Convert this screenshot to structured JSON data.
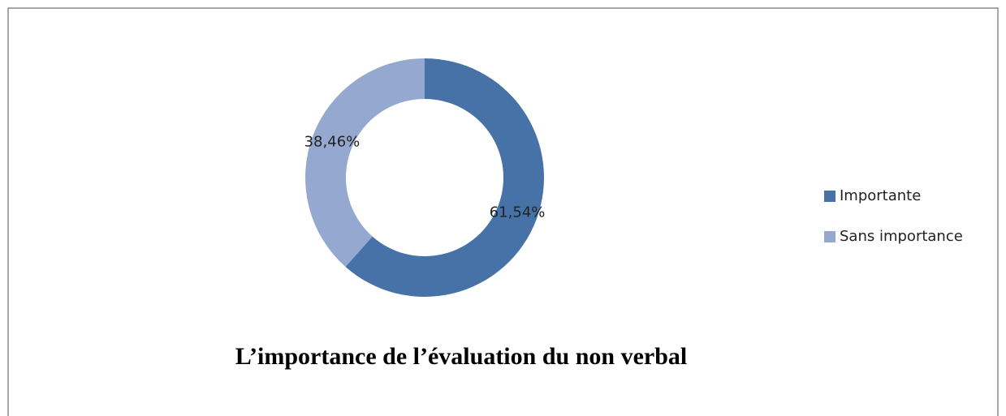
{
  "chart_data": {
    "type": "donut",
    "title": "L’importance de l’évaluation du non verbal",
    "categories": [
      "Importante",
      "Sans importance"
    ],
    "values": [
      61.54,
      38.46
    ],
    "value_labels": [
      "61,54%",
      "38,46%"
    ],
    "colors": [
      "#4672a8",
      "#94a8d0"
    ],
    "legend": "right"
  }
}
